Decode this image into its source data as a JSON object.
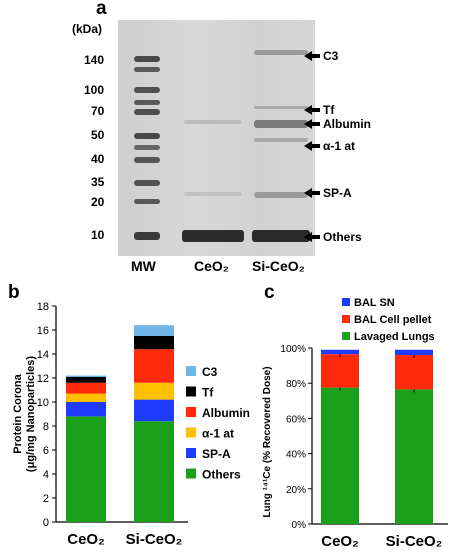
{
  "panel_a": {
    "letter": "a",
    "kda_label": "(kDa)",
    "mw_markers": [
      "140",
      "100",
      "70",
      "50",
      "40",
      "35",
      "20",
      "10"
    ],
    "lanes": [
      "MW",
      "CeO₂",
      "Si-CeO₂"
    ],
    "annotations": [
      "C3",
      "Tf",
      "Albumin",
      "α-1 at",
      "SP-A",
      "Others"
    ]
  },
  "chart_data": [
    {
      "type": "bar",
      "panel": "b",
      "stacked": true,
      "ylabel": "Protein Corona (μg/mg Nanoparticles)",
      "ylim": [
        0,
        18
      ],
      "yticks": [
        "0",
        "2",
        "4",
        "6",
        "8",
        "10",
        "12",
        "14",
        "16",
        "18"
      ],
      "categories": [
        "CeO₂",
        "Si-CeO₂"
      ],
      "series": [
        {
          "name": "Others",
          "color": "#1aa01a",
          "values": [
            8.8,
            8.4
          ]
        },
        {
          "name": "SP-A",
          "color": "#1f3bff",
          "values": [
            1.2,
            1.8
          ]
        },
        {
          "name": "α-1 at",
          "color": "#ffc000",
          "values": [
            0.7,
            1.4
          ]
        },
        {
          "name": "Albumin",
          "color": "#ff2a0a",
          "values": [
            0.9,
            2.8
          ]
        },
        {
          "name": "Tf",
          "color": "#000000",
          "values": [
            0.5,
            1.1
          ]
        },
        {
          "name": "C3",
          "color": "#6fb6e6",
          "values": [
            0.1,
            0.9
          ]
        }
      ],
      "legend": [
        "C3",
        "Tf",
        "Albumin",
        "α-1 at",
        "SP-A",
        "Others"
      ],
      "legend_position": "right"
    },
    {
      "type": "bar",
      "panel": "c",
      "stacked": true,
      "ylabel": "Lung ¹⁴¹Ce (% Recovered Dose)",
      "ylim": [
        0,
        100
      ],
      "yticks": [
        "0%",
        "20%",
        "40%",
        "60%",
        "80%",
        "100%"
      ],
      "categories": [
        "CeO₂",
        "Si-CeO₂"
      ],
      "series": [
        {
          "name": "Lavaged Lungs",
          "color": "#1aa01a",
          "values": [
            77.5,
            76.5
          ]
        },
        {
          "name": "BAL Cell pellet",
          "color": "#ff2a0a",
          "values": [
            19.0,
            19.5
          ]
        },
        {
          "name": "BAL SN",
          "color": "#1f3bff",
          "values": [
            2.5,
            3.0
          ]
        }
      ],
      "legend": [
        "BAL SN",
        "BAL Cell pellet",
        "Lavaged Lungs"
      ],
      "legend_position": "top"
    }
  ]
}
